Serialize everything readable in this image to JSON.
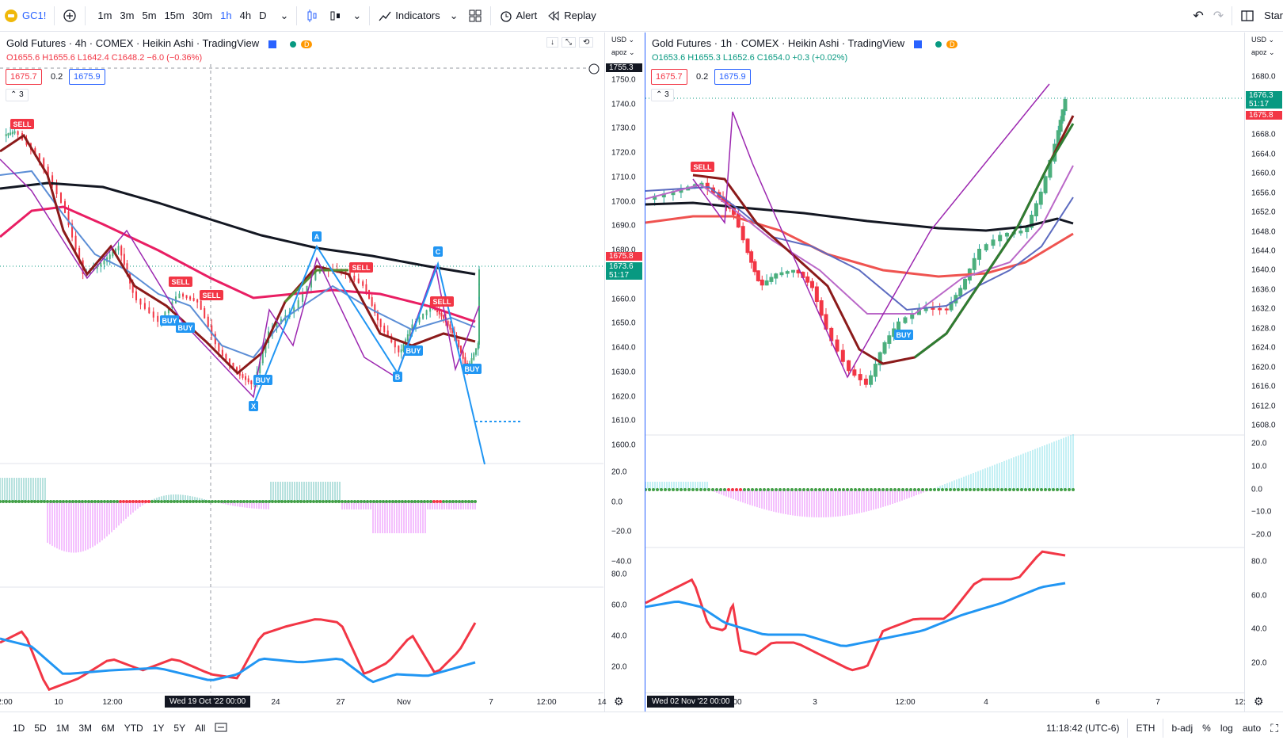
{
  "toolbar": {
    "symbol": "GC1!",
    "intervals": [
      "1m",
      "3m",
      "5m",
      "15m",
      "30m",
      "1h",
      "4h",
      "D"
    ],
    "active_interval": "1h",
    "indicators_label": "Indicators",
    "alert_label": "Alert",
    "replay_label": "Replay",
    "start_label": "Star"
  },
  "left_chart": {
    "title": "Gold Futures · 4h · COMEX · Heikin Ashi · TradingView",
    "badge": "D",
    "ohlc": {
      "o": "O1655.6",
      "h": "H1655.6",
      "l": "L1642.4",
      "c": "C1648.2",
      "chg": "−6.0 (−0.36%)"
    },
    "sell_price": "1675.7",
    "spread": "0.2",
    "buy_price": "1675.9",
    "indicator_count": "3",
    "currency": "USD",
    "scale_mode": "apoz",
    "crosshair_price": "1755.3",
    "price_ticks": [
      "1750.0",
      "1740.0",
      "1730.0",
      "1720.0",
      "1710.0",
      "1700.0",
      "1690.0",
      "1680.0",
      "1670.0",
      "1660.0",
      "1650.0",
      "1640.0",
      "1630.0",
      "1620.0",
      "1610.0",
      "1600.0"
    ],
    "price_tag_red": "1675.8",
    "price_tag_green": "1673.6",
    "countdown": "51:17",
    "osc_ticks": [
      "20.0",
      "0.0",
      "−20.0",
      "−40.0"
    ],
    "rsi_ticks": [
      "80.0",
      "60.0",
      "40.0",
      "20.0"
    ],
    "time_labels": [
      "2:00",
      "10",
      "12:00",
      "24",
      "27",
      "Nov",
      "7",
      "12:00",
      "14"
    ],
    "crosshair_time": "Wed 19 Oct '22   00:00",
    "signals": [
      "SELL",
      "SELL",
      "SELL",
      "SELL",
      "SELL",
      "BUY",
      "BUY",
      "BUY",
      "BUY",
      "BUY"
    ],
    "pattern_points": [
      "X",
      "A",
      "B",
      "C"
    ]
  },
  "right_chart": {
    "title": "Gold Futures · 1h · COMEX · Heikin Ashi · TradingView",
    "badge": "D",
    "ohlc": {
      "o": "O1653.6",
      "h": "H1655.3",
      "l": "L1652.6",
      "c": "C1654.0",
      "chg": "+0.3 (+0.02%)"
    },
    "sell_price": "1675.7",
    "spread": "0.2",
    "buy_price": "1675.9",
    "indicator_count": "3",
    "currency": "USD",
    "scale_mode": "apoz",
    "price_ticks": [
      "1680.0",
      "1676.0",
      "1672.0",
      "1668.0",
      "1664.0",
      "1660.0",
      "1656.0",
      "1652.0",
      "1648.0",
      "1644.0",
      "1640.0",
      "1636.0",
      "1632.0",
      "1628.0",
      "1624.0",
      "1620.0",
      "1616.0",
      "1612.0",
      "1608.0"
    ],
    "price_tag_green": "1676.3",
    "countdown": "51:17",
    "price_tag_red": "1675.8",
    "osc_ticks": [
      "20.0",
      "10.0",
      "0.0",
      "−10.0",
      "−20.0"
    ],
    "rsi_ticks": [
      "80.0",
      "60.0",
      "40.0",
      "20.0"
    ],
    "time_labels": [
      "00",
      "3",
      "12:00",
      "4",
      "6",
      "7",
      "12:"
    ],
    "crosshair_time": "Wed 02 Nov '22   00:00",
    "signals": [
      "SELL",
      "BUY"
    ]
  },
  "bottombar": {
    "ranges": [
      "1D",
      "5D",
      "1M",
      "3M",
      "6M",
      "YTD",
      "1Y",
      "5Y",
      "All"
    ],
    "time": "11:18:42 (UTC-6)",
    "session": "ETH",
    "adj": "b-adj",
    "pct": "%",
    "log": "log",
    "auto": "auto"
  },
  "colors": {
    "red": "#f23645",
    "green": "#089981",
    "blue": "#2962ff",
    "pattern": "#2196f3",
    "ma_black": "#131722",
    "ma_crimson": "#e91e63",
    "purple": "#9c27b0"
  }
}
